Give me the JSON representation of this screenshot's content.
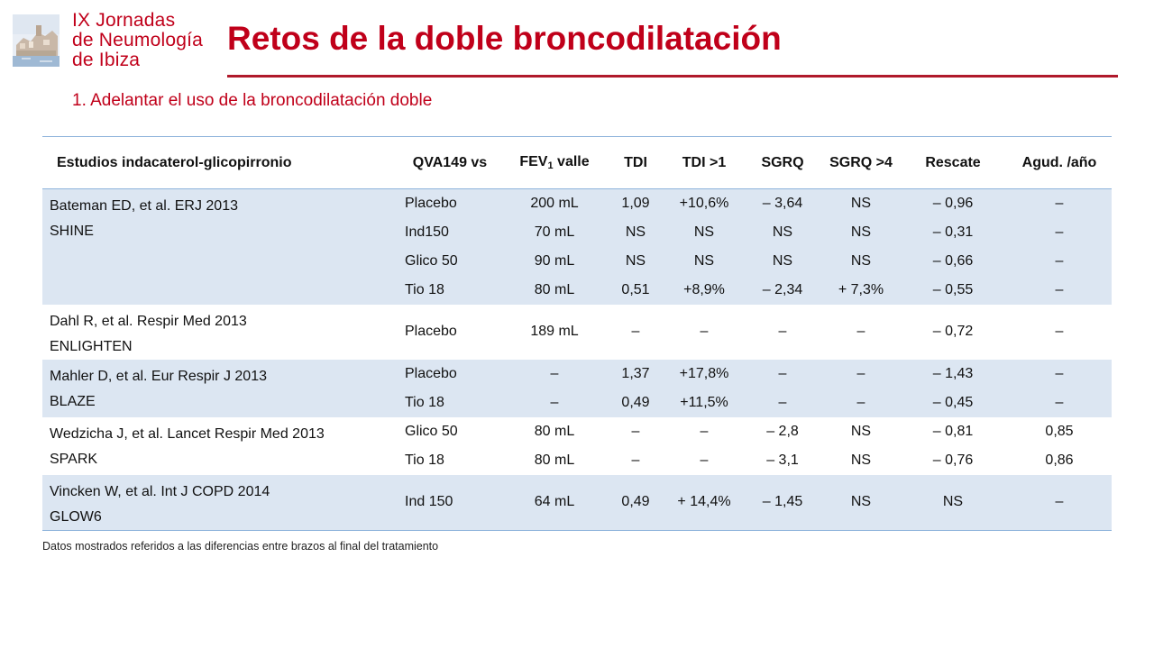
{
  "logo": {
    "lines": [
      "IX Jornadas",
      "de Neumología",
      "de Ibiza"
    ]
  },
  "title": "Retos de la doble broncodilatación",
  "subtitle": "1. Adelantar el uso de la broncodilatación doble",
  "table": {
    "headers": {
      "study": "Estudios indacaterol-glicopirronio",
      "comparator": "QVA149 vs",
      "fev1_pre": "FEV",
      "fev1_sub": "1",
      "fev1_post": " valle",
      "tdi": "TDI",
      "tdi_gt1": "TDI >1",
      "sgrq": "SGRQ",
      "sgrq_gt4": "SGRQ >4",
      "rescue": "Rescate",
      "exac": "Agud. /año"
    },
    "studies": [
      {
        "citation": "Bateman ED, et al. ERJ 2013",
        "name": "SHINE",
        "rows": [
          [
            "Placebo",
            "200 mL",
            "1,09",
            "+10,6%",
            "– 3,64",
            "NS",
            "– 0,96",
            "–"
          ],
          [
            "Ind150",
            "70 mL",
            "NS",
            "NS",
            "NS",
            "NS",
            "– 0,31",
            "–"
          ],
          [
            "Glico 50",
            "90 mL",
            "NS",
            "NS",
            "NS",
            "NS",
            "– 0,66",
            "–"
          ],
          [
            "Tio 18",
            "80 mL",
            "0,51",
            "+8,9%",
            "– 2,34",
            "+ 7,3%",
            "– 0,55",
            "–"
          ]
        ]
      },
      {
        "citation": "Dahl R, et al. Respir Med 2013",
        "name": "ENLIGHTEN",
        "rows": [
          [
            "Placebo",
            "189 mL",
            "–",
            "–",
            "–",
            "–",
            "– 0,72",
            "–"
          ]
        ]
      },
      {
        "citation": "Mahler D, et al. Eur Respir J 2013",
        "name": "BLAZE",
        "rows": [
          [
            "Placebo",
            "–",
            "1,37",
            "+17,8%",
            "–",
            "–",
            "– 1,43",
            "–"
          ],
          [
            "Tio 18",
            "–",
            "0,49",
            "+11,5%",
            "–",
            "–",
            "– 0,45",
            "–"
          ]
        ]
      },
      {
        "citation": "Wedzicha J, et al. Lancet Respir Med 2013",
        "name": "SPARK",
        "rows": [
          [
            "Glico 50",
            "80 mL",
            "–",
            "–",
            "– 2,8",
            "NS",
            "– 0,81",
            "0,85"
          ],
          [
            "Tio 18",
            "80 mL",
            "–",
            "–",
            "– 3,1",
            "NS",
            "– 0,76",
            "0,86"
          ]
        ]
      },
      {
        "citation": "Vincken W, et al. Int J COPD 2014",
        "name": "GLOW6",
        "rows": [
          [
            "Ind 150",
            "64 mL",
            "0,49",
            "+ 14,4%",
            "– 1,45",
            "NS",
            "NS",
            "–"
          ]
        ]
      }
    ]
  },
  "footnote": "Datos mostrados referidos a las diferencias entre brazos al final del tratamiento",
  "colors": {
    "accent_red": "#c0001a",
    "band_blue": "#dce6f2",
    "rule_blue": "#8fb4dc"
  }
}
